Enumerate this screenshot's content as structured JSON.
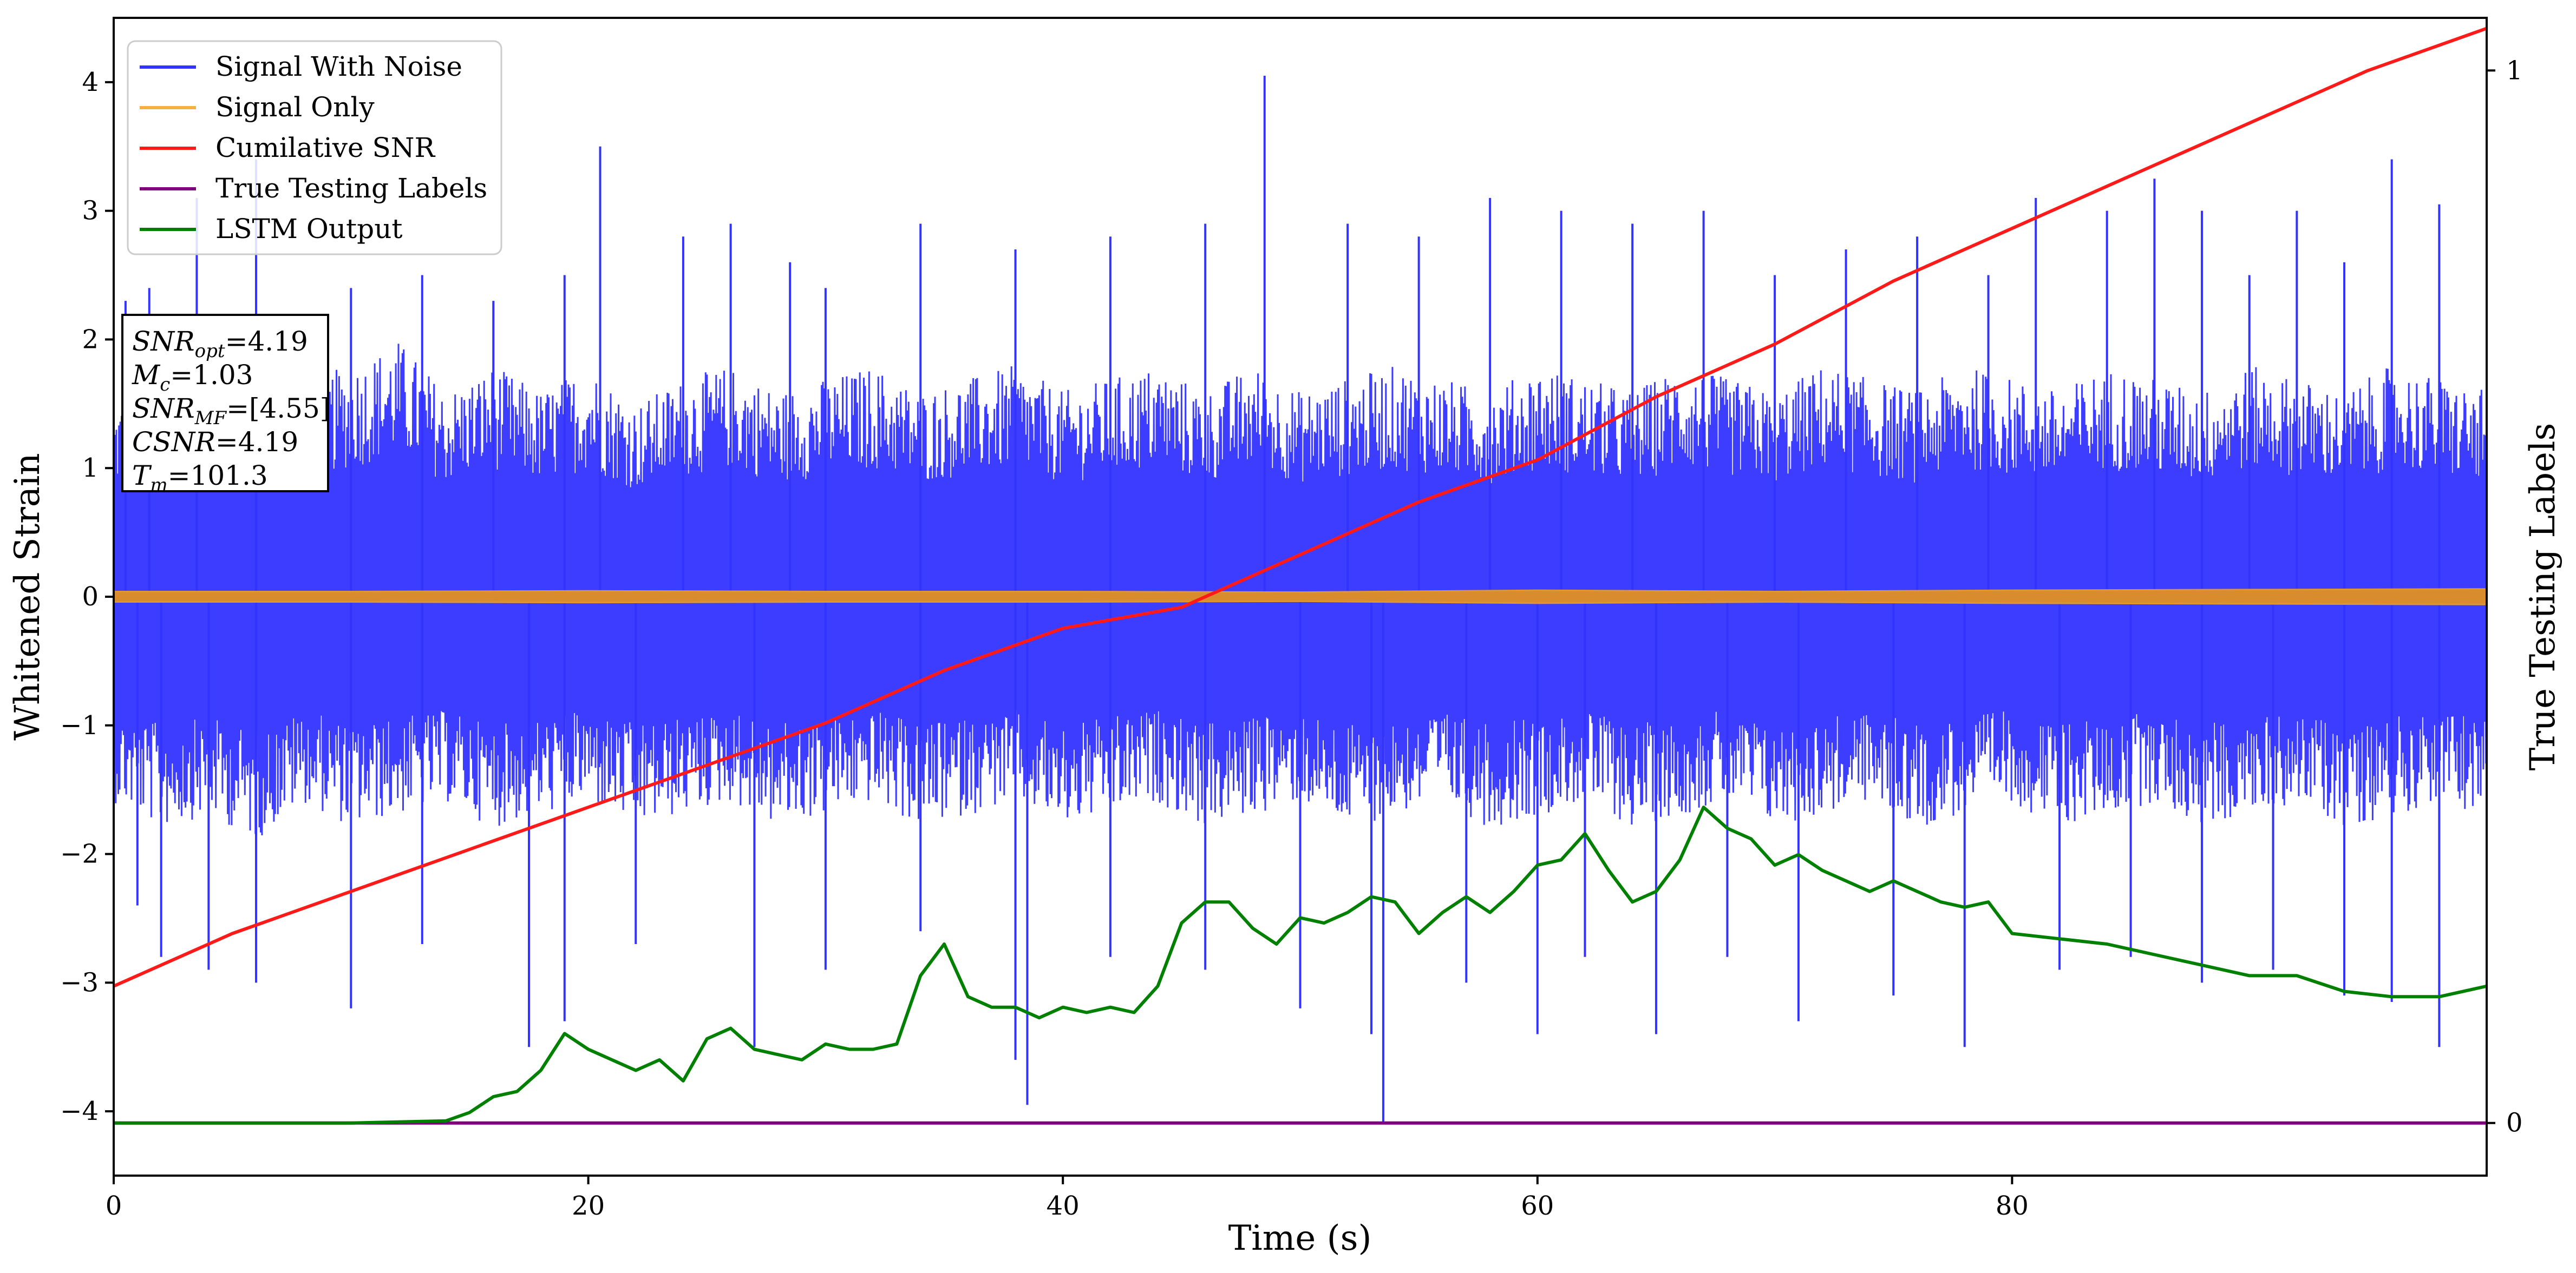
{
  "chart_data": {
    "type": "line",
    "xlabel": "Time (s)",
    "ylabel": "Whitened Strain",
    "ylabel_right": "True Testing Labels",
    "xlim": [
      0,
      100
    ],
    "ylim": [
      -4.5,
      4.5
    ],
    "ylim_right": [
      -0.05,
      1.05
    ],
    "x_ticks": [
      0,
      20,
      40,
      60,
      80
    ],
    "y_ticks": [
      -4,
      -3,
      -2,
      -1,
      0,
      1,
      2,
      3,
      4
    ],
    "y_ticks_right": [
      0,
      1
    ],
    "grid": false,
    "legend_position": "upper left",
    "legend": [
      {
        "name": "Signal With Noise",
        "color": "#3333ff"
      },
      {
        "name": "Signal Only",
        "color": "#f5b041"
      },
      {
        "name": "Cumilative SNR",
        "color": "#ff1a1a"
      },
      {
        "name": "True Testing Labels",
        "color": "#800080"
      },
      {
        "name": "LSTM Output",
        "color": "#008000"
      }
    ],
    "annotation": {
      "lines": [
        {
          "var": "SNR",
          "sub": "opt",
          "value": "=4.19"
        },
        {
          "var": "M",
          "sub": "c",
          "value": "=1.03"
        },
        {
          "var": "SNR",
          "sub": "MF",
          "value": "=[4.55]"
        },
        {
          "var": "CSNR",
          "sub": "",
          "value": "=4.19"
        },
        {
          "var": "T",
          "sub": "m",
          "value": "=101.3"
        }
      ]
    },
    "series": [
      {
        "name": "Signal With Noise",
        "axis": "left",
        "style": "noise-band",
        "band_outline_upper": [
          [
            0,
            1.5
          ],
          [
            2,
            1.8
          ],
          [
            4,
            1.8
          ],
          [
            6,
            1.6
          ],
          [
            8,
            1.7
          ],
          [
            10,
            1.8
          ],
          [
            12,
            2.0
          ],
          [
            14,
            1.6
          ],
          [
            16,
            1.8
          ],
          [
            18,
            1.6
          ],
          [
            20,
            1.8
          ],
          [
            22,
            1.5
          ],
          [
            24,
            1.7
          ],
          [
            26,
            1.8
          ],
          [
            28,
            1.6
          ],
          [
            30,
            1.7
          ],
          [
            32,
            1.8
          ],
          [
            34,
            1.6
          ],
          [
            36,
            1.7
          ],
          [
            38,
            1.8
          ],
          [
            40,
            1.6
          ],
          [
            42,
            1.7
          ],
          [
            44,
            1.8
          ],
          [
            46,
            1.6
          ],
          [
            48,
            1.8
          ],
          [
            50,
            1.6
          ],
          [
            52,
            1.7
          ],
          [
            54,
            1.8
          ],
          [
            56,
            1.7
          ],
          [
            58,
            1.6
          ],
          [
            60,
            1.8
          ],
          [
            62,
            1.7
          ],
          [
            64,
            1.6
          ],
          [
            66,
            1.8
          ],
          [
            68,
            1.7
          ],
          [
            70,
            1.6
          ],
          [
            72,
            1.8
          ],
          [
            74,
            1.7
          ],
          [
            76,
            1.6
          ],
          [
            78,
            1.8
          ],
          [
            80,
            1.7
          ],
          [
            82,
            1.6
          ],
          [
            84,
            1.8
          ],
          [
            86,
            1.7
          ],
          [
            88,
            1.6
          ],
          [
            90,
            1.8
          ],
          [
            92,
            1.7
          ],
          [
            94,
            1.6
          ],
          [
            96,
            1.8
          ],
          [
            98,
            1.7
          ],
          [
            100,
            1.6
          ]
        ],
        "band_outline_lower": [
          [
            0,
            -1.6
          ],
          [
            2,
            -1.8
          ],
          [
            4,
            -1.7
          ],
          [
            6,
            -1.9
          ],
          [
            8,
            -1.6
          ],
          [
            10,
            -1.8
          ],
          [
            12,
            -1.7
          ],
          [
            14,
            -1.6
          ],
          [
            16,
            -1.8
          ],
          [
            18,
            -1.7
          ],
          [
            20,
            -1.6
          ],
          [
            22,
            -1.8
          ],
          [
            24,
            -1.7
          ],
          [
            26,
            -1.6
          ],
          [
            28,
            -1.8
          ],
          [
            30,
            -1.7
          ],
          [
            32,
            -1.6
          ],
          [
            34,
            -1.8
          ],
          [
            36,
            -1.7
          ],
          [
            38,
            -1.6
          ],
          [
            40,
            -1.8
          ],
          [
            42,
            -1.7
          ],
          [
            44,
            -1.6
          ],
          [
            46,
            -1.8
          ],
          [
            48,
            -1.7
          ],
          [
            50,
            -1.6
          ],
          [
            52,
            -1.8
          ],
          [
            54,
            -1.7
          ],
          [
            56,
            -1.6
          ],
          [
            58,
            -1.8
          ],
          [
            60,
            -1.7
          ],
          [
            62,
            -1.6
          ],
          [
            64,
            -1.8
          ],
          [
            66,
            -1.7
          ],
          [
            68,
            -1.6
          ],
          [
            70,
            -1.8
          ],
          [
            72,
            -1.7
          ],
          [
            74,
            -1.6
          ],
          [
            76,
            -1.8
          ],
          [
            78,
            -1.7
          ],
          [
            80,
            -1.6
          ],
          [
            82,
            -1.8
          ],
          [
            84,
            -1.7
          ],
          [
            86,
            -1.6
          ],
          [
            88,
            -1.8
          ],
          [
            90,
            -1.7
          ],
          [
            92,
            -1.6
          ],
          [
            94,
            -1.8
          ],
          [
            96,
            -1.7
          ],
          [
            98,
            -1.6
          ],
          [
            100,
            -1.7
          ]
        ],
        "peaks_upper": [
          [
            0.5,
            2.3
          ],
          [
            1.5,
            2.4
          ],
          [
            3.5,
            3.1
          ],
          [
            6,
            3.4
          ],
          [
            10,
            2.4
          ],
          [
            13,
            2.5
          ],
          [
            16,
            2.3
          ],
          [
            19,
            2.5
          ],
          [
            20.5,
            3.5
          ],
          [
            24,
            2.8
          ],
          [
            26,
            2.9
          ],
          [
            28.5,
            2.6
          ],
          [
            30,
            2.4
          ],
          [
            34,
            2.9
          ],
          [
            38,
            2.7
          ],
          [
            42,
            2.8
          ],
          [
            46,
            2.9
          ],
          [
            48.5,
            4.05
          ],
          [
            52,
            2.9
          ],
          [
            55,
            2.8
          ],
          [
            58,
            3.1
          ],
          [
            61,
            3.0
          ],
          [
            64,
            2.9
          ],
          [
            67,
            3.0
          ],
          [
            70,
            2.5
          ],
          [
            73,
            2.7
          ],
          [
            76,
            2.8
          ],
          [
            79,
            2.5
          ],
          [
            81,
            3.1
          ],
          [
            84,
            3.0
          ],
          [
            86,
            3.25
          ],
          [
            88,
            3.0
          ],
          [
            90,
            2.5
          ],
          [
            92,
            3.0
          ],
          [
            94,
            2.6
          ],
          [
            96,
            3.4
          ],
          [
            98,
            3.05
          ]
        ],
        "peaks_lower": [
          [
            1,
            -2.4
          ],
          [
            2,
            -2.8
          ],
          [
            4,
            -2.9
          ],
          [
            6,
            -3.0
          ],
          [
            10,
            -3.2
          ],
          [
            13,
            -2.7
          ],
          [
            17.5,
            -3.5
          ],
          [
            19,
            -3.3
          ],
          [
            22,
            -2.7
          ],
          [
            27,
            -3.5
          ],
          [
            30,
            -2.9
          ],
          [
            34,
            -2.6
          ],
          [
            38,
            -3.6
          ],
          [
            38.5,
            -3.95
          ],
          [
            42,
            -2.8
          ],
          [
            46,
            -2.9
          ],
          [
            50,
            -3.2
          ],
          [
            53,
            -3.4
          ],
          [
            53.5,
            -4.1
          ],
          [
            57,
            -3.0
          ],
          [
            60,
            -3.4
          ],
          [
            62,
            -2.8
          ],
          [
            65,
            -3.4
          ],
          [
            68,
            -2.8
          ],
          [
            71,
            -3.3
          ],
          [
            75,
            -3.1
          ],
          [
            78,
            -3.5
          ],
          [
            82,
            -2.9
          ],
          [
            85,
            -2.8
          ],
          [
            88,
            -3.0
          ],
          [
            91,
            -2.9
          ],
          [
            94,
            -3.1
          ],
          [
            96,
            -3.15
          ],
          [
            98,
            -3.5
          ]
        ]
      },
      {
        "name": "Signal Only",
        "axis": "left",
        "style": "amplitude-band",
        "x": [
          0,
          10,
          20,
          30,
          40,
          50,
          60,
          70,
          80,
          90,
          100
        ],
        "amplitude": [
          0.04,
          0.04,
          0.045,
          0.04,
          0.04,
          0.035,
          0.05,
          0.04,
          0.05,
          0.055,
          0.06
        ]
      },
      {
        "name": "Cumilative SNR",
        "axis": "right",
        "x": [
          0,
          5,
          10,
          15,
          20,
          25,
          30,
          35,
          40,
          45,
          50,
          55,
          60,
          65,
          70,
          75,
          80,
          85,
          90,
          95,
          100
        ],
        "values": [
          0.13,
          0.18,
          0.22,
          0.26,
          0.3,
          0.34,
          0.38,
          0.43,
          0.47,
          0.49,
          0.54,
          0.59,
          0.63,
          0.69,
          0.74,
          0.8,
          0.85,
          0.9,
          0.95,
          1.0,
          1.04
        ]
      },
      {
        "name": "True Testing Labels",
        "axis": "right",
        "x": [
          0,
          100
        ],
        "values": [
          0,
          0
        ]
      },
      {
        "name": "LSTM Output",
        "axis": "right",
        "x": [
          0,
          10,
          14,
          15,
          16,
          17,
          18,
          19,
          20,
          21,
          22,
          23,
          24,
          25,
          26,
          27,
          28,
          29,
          30,
          31,
          32,
          33,
          34,
          35,
          36,
          37,
          38,
          39,
          40,
          41,
          42,
          43,
          44,
          45,
          46,
          47,
          48,
          49,
          50,
          51,
          52,
          53,
          54,
          55,
          56,
          57,
          58,
          59,
          60,
          61,
          62,
          63,
          64,
          65,
          66,
          67,
          68,
          69,
          70,
          71,
          72,
          73,
          74,
          75,
          76,
          77,
          78,
          79,
          80,
          82,
          84,
          86,
          88,
          90,
          92,
          94,
          96,
          98,
          100
        ],
        "values": [
          0.0,
          0.0,
          0.002,
          0.01,
          0.025,
          0.03,
          0.05,
          0.085,
          0.07,
          0.06,
          0.05,
          0.06,
          0.04,
          0.08,
          0.09,
          0.07,
          0.065,
          0.06,
          0.075,
          0.07,
          0.07,
          0.075,
          0.14,
          0.17,
          0.12,
          0.11,
          0.11,
          0.1,
          0.11,
          0.105,
          0.11,
          0.105,
          0.13,
          0.19,
          0.21,
          0.21,
          0.185,
          0.17,
          0.195,
          0.19,
          0.2,
          0.215,
          0.21,
          0.18,
          0.2,
          0.215,
          0.2,
          0.22,
          0.245,
          0.25,
          0.275,
          0.24,
          0.21,
          0.22,
          0.25,
          0.3,
          0.28,
          0.27,
          0.245,
          0.255,
          0.24,
          0.23,
          0.22,
          0.23,
          0.22,
          0.21,
          0.205,
          0.21,
          0.18,
          0.175,
          0.17,
          0.16,
          0.15,
          0.14,
          0.14,
          0.125,
          0.12,
          0.12,
          0.13
        ]
      }
    ]
  }
}
